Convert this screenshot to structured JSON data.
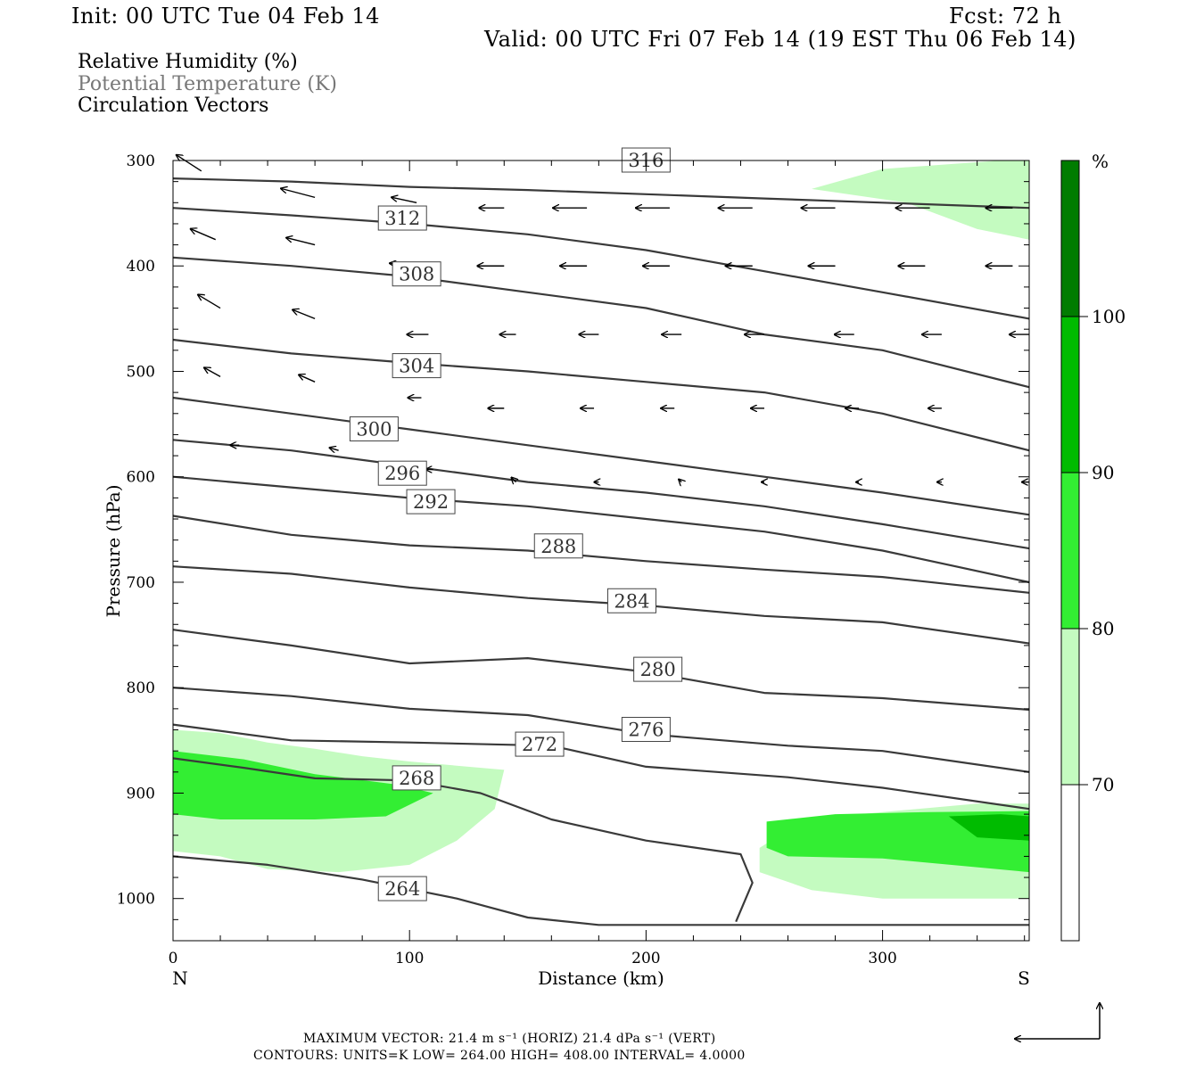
{
  "header": {
    "init": "Init: 00 UTC Tue 04 Feb 14",
    "fcst": "Fcst:   72 h",
    "valid": "Valid: 00 UTC Fri 07 Feb 14 (19 EST Thu 06 Feb 14)"
  },
  "legend": {
    "line1": "Relative Humidity (%)",
    "line2": "Potential Temperature (K)",
    "line3": "Circulation Vectors"
  },
  "colorbar": {
    "unit": "%",
    "levels": [
      "70",
      "80",
      "90",
      "100"
    ],
    "colors": [
      "#ffffff",
      "#c4fbc0",
      "#33ee33",
      "#00bb00",
      "#007c00"
    ]
  },
  "footer": {
    "max_vector_line": "MAXIMUM VECTOR:  21.4 m s⁻¹ (HORIZ)          21.4 dPa s⁻¹ (VERT)",
    "contours_line": "CONTOURS:  UNITS=K  LOW=   264.00         HIGH=   408.00         INTERVAL=     4.0000"
  },
  "chart_data": {
    "type": "cross-section",
    "xlabel": "Distance (km)",
    "ylabel": "Pressure (hPa)",
    "xlim": [
      0,
      362
    ],
    "ylim": [
      1040,
      300
    ],
    "x_ticks": [
      "0",
      "100",
      "200",
      "300"
    ],
    "y_ticks": [
      "300",
      "400",
      "500",
      "600",
      "700",
      "800",
      "900",
      "1000"
    ],
    "x_end_labels": {
      "left": "N",
      "right": "S"
    },
    "contour_units": "K",
    "contour_low": 264.0,
    "contour_high": 408.0,
    "contour_interval": 4.0,
    "isentropes": [
      {
        "value": 264,
        "label": "264",
        "label_at": [
          97,
          991
        ],
        "points": [
          [
            0,
            960
          ],
          [
            40,
            968
          ],
          [
            80,
            982
          ],
          [
            120,
            1000
          ],
          [
            150,
            1018
          ],
          [
            180,
            1025
          ],
          [
            260,
            1025
          ],
          [
            362,
            1025
          ]
        ]
      },
      {
        "value": 268,
        "label": "268",
        "label_at": [
          103,
          886
        ],
        "points": [
          [
            0,
            867
          ],
          [
            30,
            876
          ],
          [
            60,
            886
          ],
          [
            100,
            888
          ],
          [
            130,
            900
          ],
          [
            160,
            925
          ],
          [
            200,
            945
          ],
          [
            240,
            958
          ],
          [
            245,
            985
          ],
          [
            238,
            1022
          ]
        ]
      },
      {
        "value": 272,
        "label": "272",
        "label_at": [
          155,
          854
        ],
        "points": [
          [
            0,
            835
          ],
          [
            50,
            850
          ],
          [
            100,
            852
          ],
          [
            160,
            855
          ],
          [
            200,
            875
          ],
          [
            260,
            885
          ],
          [
            300,
            895
          ],
          [
            362,
            915
          ]
        ]
      },
      {
        "value": 276,
        "label": "276",
        "label_at": [
          200,
          840
        ],
        "points": [
          [
            0,
            800
          ],
          [
            50,
            808
          ],
          [
            100,
            820
          ],
          [
            150,
            826
          ],
          [
            200,
            844
          ],
          [
            260,
            855
          ],
          [
            300,
            860
          ],
          [
            362,
            880
          ]
        ]
      },
      {
        "value": 280,
        "label": "280",
        "label_at": [
          205,
          783
        ],
        "points": [
          [
            0,
            745
          ],
          [
            50,
            760
          ],
          [
            100,
            777
          ],
          [
            150,
            772
          ],
          [
            200,
            785
          ],
          [
            250,
            805
          ],
          [
            300,
            810
          ],
          [
            362,
            821
          ]
        ]
      },
      {
        "value": 284,
        "label": "284",
        "label_at": [
          194,
          718
        ],
        "points": [
          [
            0,
            685
          ],
          [
            50,
            692
          ],
          [
            100,
            705
          ],
          [
            150,
            715
          ],
          [
            200,
            722
          ],
          [
            250,
            732
          ],
          [
            300,
            738
          ],
          [
            362,
            758
          ]
        ]
      },
      {
        "value": 288,
        "label": "288",
        "label_at": [
          163,
          666
        ],
        "points": [
          [
            0,
            637
          ],
          [
            50,
            655
          ],
          [
            100,
            665
          ],
          [
            150,
            670
          ],
          [
            200,
            680
          ],
          [
            250,
            688
          ],
          [
            300,
            695
          ],
          [
            362,
            710
          ]
        ]
      },
      {
        "value": 292,
        "label": "292",
        "label_at": [
          109,
          624
        ],
        "points": [
          [
            0,
            600
          ],
          [
            50,
            610
          ],
          [
            100,
            620
          ],
          [
            150,
            628
          ],
          [
            200,
            640
          ],
          [
            250,
            652
          ],
          [
            300,
            670
          ],
          [
            362,
            700
          ]
        ]
      },
      {
        "value": 296,
        "label": "296",
        "label_at": [
          97,
          597
        ],
        "points": [
          [
            0,
            565
          ],
          [
            50,
            575
          ],
          [
            100,
            590
          ],
          [
            150,
            605
          ],
          [
            200,
            615
          ],
          [
            250,
            628
          ],
          [
            300,
            645
          ],
          [
            362,
            668
          ]
        ]
      },
      {
        "value": 300,
        "label": "300",
        "label_at": [
          85,
          555
        ],
        "points": [
          [
            0,
            525
          ],
          [
            50,
            540
          ],
          [
            100,
            555
          ],
          [
            150,
            570
          ],
          [
            200,
            585
          ],
          [
            250,
            600
          ],
          [
            300,
            615
          ],
          [
            362,
            636
          ]
        ]
      },
      {
        "value": 304,
        "label": "304",
        "label_at": [
          103,
          495
        ],
        "points": [
          [
            0,
            470
          ],
          [
            50,
            483
          ],
          [
            100,
            492
          ],
          [
            150,
            500
          ],
          [
            200,
            510
          ],
          [
            250,
            520
          ],
          [
            300,
            540
          ],
          [
            362,
            575
          ]
        ]
      },
      {
        "value": 308,
        "label": "308",
        "label_at": [
          103,
          408
        ],
        "points": [
          [
            0,
            392
          ],
          [
            50,
            400
          ],
          [
            100,
            410
          ],
          [
            150,
            425
          ],
          [
            200,
            440
          ],
          [
            250,
            465
          ],
          [
            300,
            480
          ],
          [
            362,
            515
          ]
        ]
      },
      {
        "value": 312,
        "label": "312",
        "label_at": [
          97,
          355
        ],
        "points": [
          [
            0,
            345
          ],
          [
            50,
            352
          ],
          [
            100,
            360
          ],
          [
            150,
            370
          ],
          [
            200,
            385
          ],
          [
            250,
            405
          ],
          [
            300,
            425
          ],
          [
            362,
            450
          ]
        ]
      },
      {
        "value": 316,
        "label": "316",
        "label_at": [
          200,
          300
        ],
        "points": [
          [
            0,
            317
          ],
          [
            50,
            320
          ],
          [
            100,
            325
          ],
          [
            150,
            328
          ],
          [
            200,
            332
          ],
          [
            250,
            336
          ],
          [
            300,
            340
          ],
          [
            362,
            345
          ]
        ]
      }
    ],
    "rh_70_80_regions": [
      [
        [
          0,
          840
        ],
        [
          20,
          843
        ],
        [
          40,
          852
        ],
        [
          60,
          858
        ],
        [
          80,
          865
        ],
        [
          100,
          870
        ],
        [
          120,
          874
        ],
        [
          140,
          878
        ],
        [
          136,
          915
        ],
        [
          120,
          945
        ],
        [
          100,
          968
        ],
        [
          70,
          975
        ],
        [
          40,
          972
        ],
        [
          20,
          960
        ],
        [
          0,
          955
        ]
      ],
      [
        [
          248,
          952
        ],
        [
          260,
          935
        ],
        [
          290,
          920
        ],
        [
          340,
          910
        ],
        [
          362,
          910
        ],
        [
          362,
          1000
        ],
        [
          300,
          1000
        ],
        [
          270,
          992
        ],
        [
          248,
          975
        ]
      ],
      [
        [
          270,
          327
        ],
        [
          300,
          308
        ],
        [
          350,
          300
        ],
        [
          362,
          300
        ],
        [
          362,
          375
        ],
        [
          340,
          365
        ],
        [
          310,
          340
        ]
      ]
    ],
    "rh_80_90_regions": [
      [
        [
          0,
          860
        ],
        [
          30,
          868
        ],
        [
          60,
          882
        ],
        [
          95,
          892
        ],
        [
          110,
          900
        ],
        [
          90,
          922
        ],
        [
          60,
          925
        ],
        [
          20,
          925
        ],
        [
          0,
          920
        ]
      ],
      [
        [
          251,
          927
        ],
        [
          280,
          920
        ],
        [
          320,
          918
        ],
        [
          362,
          917
        ],
        [
          362,
          975
        ],
        [
          300,
          962
        ],
        [
          260,
          960
        ],
        [
          251,
          952
        ]
      ]
    ],
    "rh_90_100_regions": [
      [
        [
          328,
          922
        ],
        [
          350,
          920
        ],
        [
          362,
          922
        ],
        [
          362,
          945
        ],
        [
          340,
          942
        ]
      ]
    ],
    "vectors": [
      [
        12,
        310,
        -28,
        -18
      ],
      [
        60,
        335,
        -38,
        -10
      ],
      [
        103,
        340,
        -28,
        -6
      ],
      [
        140,
        345,
        -28,
        0
      ],
      [
        175,
        345,
        -38,
        0
      ],
      [
        210,
        345,
        -38,
        0
      ],
      [
        245,
        345,
        -38,
        0
      ],
      [
        280,
        345,
        -38,
        0
      ],
      [
        320,
        345,
        -38,
        0
      ],
      [
        355,
        345,
        -30,
        0
      ],
      [
        18,
        375,
        -28,
        -12
      ],
      [
        60,
        380,
        -32,
        -8
      ],
      [
        103,
        400,
        -30,
        -3
      ],
      [
        140,
        400,
        -30,
        0
      ],
      [
        175,
        400,
        -30,
        0
      ],
      [
        210,
        400,
        -30,
        0
      ],
      [
        245,
        400,
        -30,
        0
      ],
      [
        280,
        400,
        -30,
        0
      ],
      [
        318,
        400,
        -30,
        0
      ],
      [
        355,
        400,
        -30,
        0
      ],
      [
        20,
        440,
        -25,
        -15
      ],
      [
        60,
        450,
        -25,
        -10
      ],
      [
        108,
        465,
        -24,
        0
      ],
      [
        145,
        465,
        -18,
        0
      ],
      [
        180,
        465,
        -22,
        0
      ],
      [
        215,
        465,
        -22,
        0
      ],
      [
        250,
        465,
        -22,
        0
      ],
      [
        288,
        465,
        -22,
        0
      ],
      [
        325,
        465,
        -22,
        0
      ],
      [
        362,
        465,
        -22,
        0
      ],
      [
        20,
        505,
        -18,
        -10
      ],
      [
        60,
        510,
        -18,
        -8
      ],
      [
        105,
        525,
        -15,
        0
      ],
      [
        140,
        535,
        -18,
        0
      ],
      [
        178,
        535,
        -15,
        0
      ],
      [
        212,
        535,
        -15,
        0
      ],
      [
        250,
        535,
        -15,
        0
      ],
      [
        290,
        535,
        -15,
        0
      ],
      [
        325,
        535,
        -15,
        0
      ],
      [
        28,
        570,
        -10,
        0
      ],
      [
        70,
        575,
        -10,
        -3
      ],
      [
        110,
        593,
        -8,
        0
      ],
      [
        145,
        605,
        -5,
        -5
      ],
      [
        180,
        605,
        -5,
        0
      ],
      [
        215,
        605,
        -3,
        -3
      ],
      [
        250,
        605,
        -3,
        0
      ],
      [
        290,
        605,
        -3,
        0
      ],
      [
        325,
        605,
        -5,
        0
      ],
      [
        362,
        605,
        -8,
        0
      ]
    ]
  }
}
